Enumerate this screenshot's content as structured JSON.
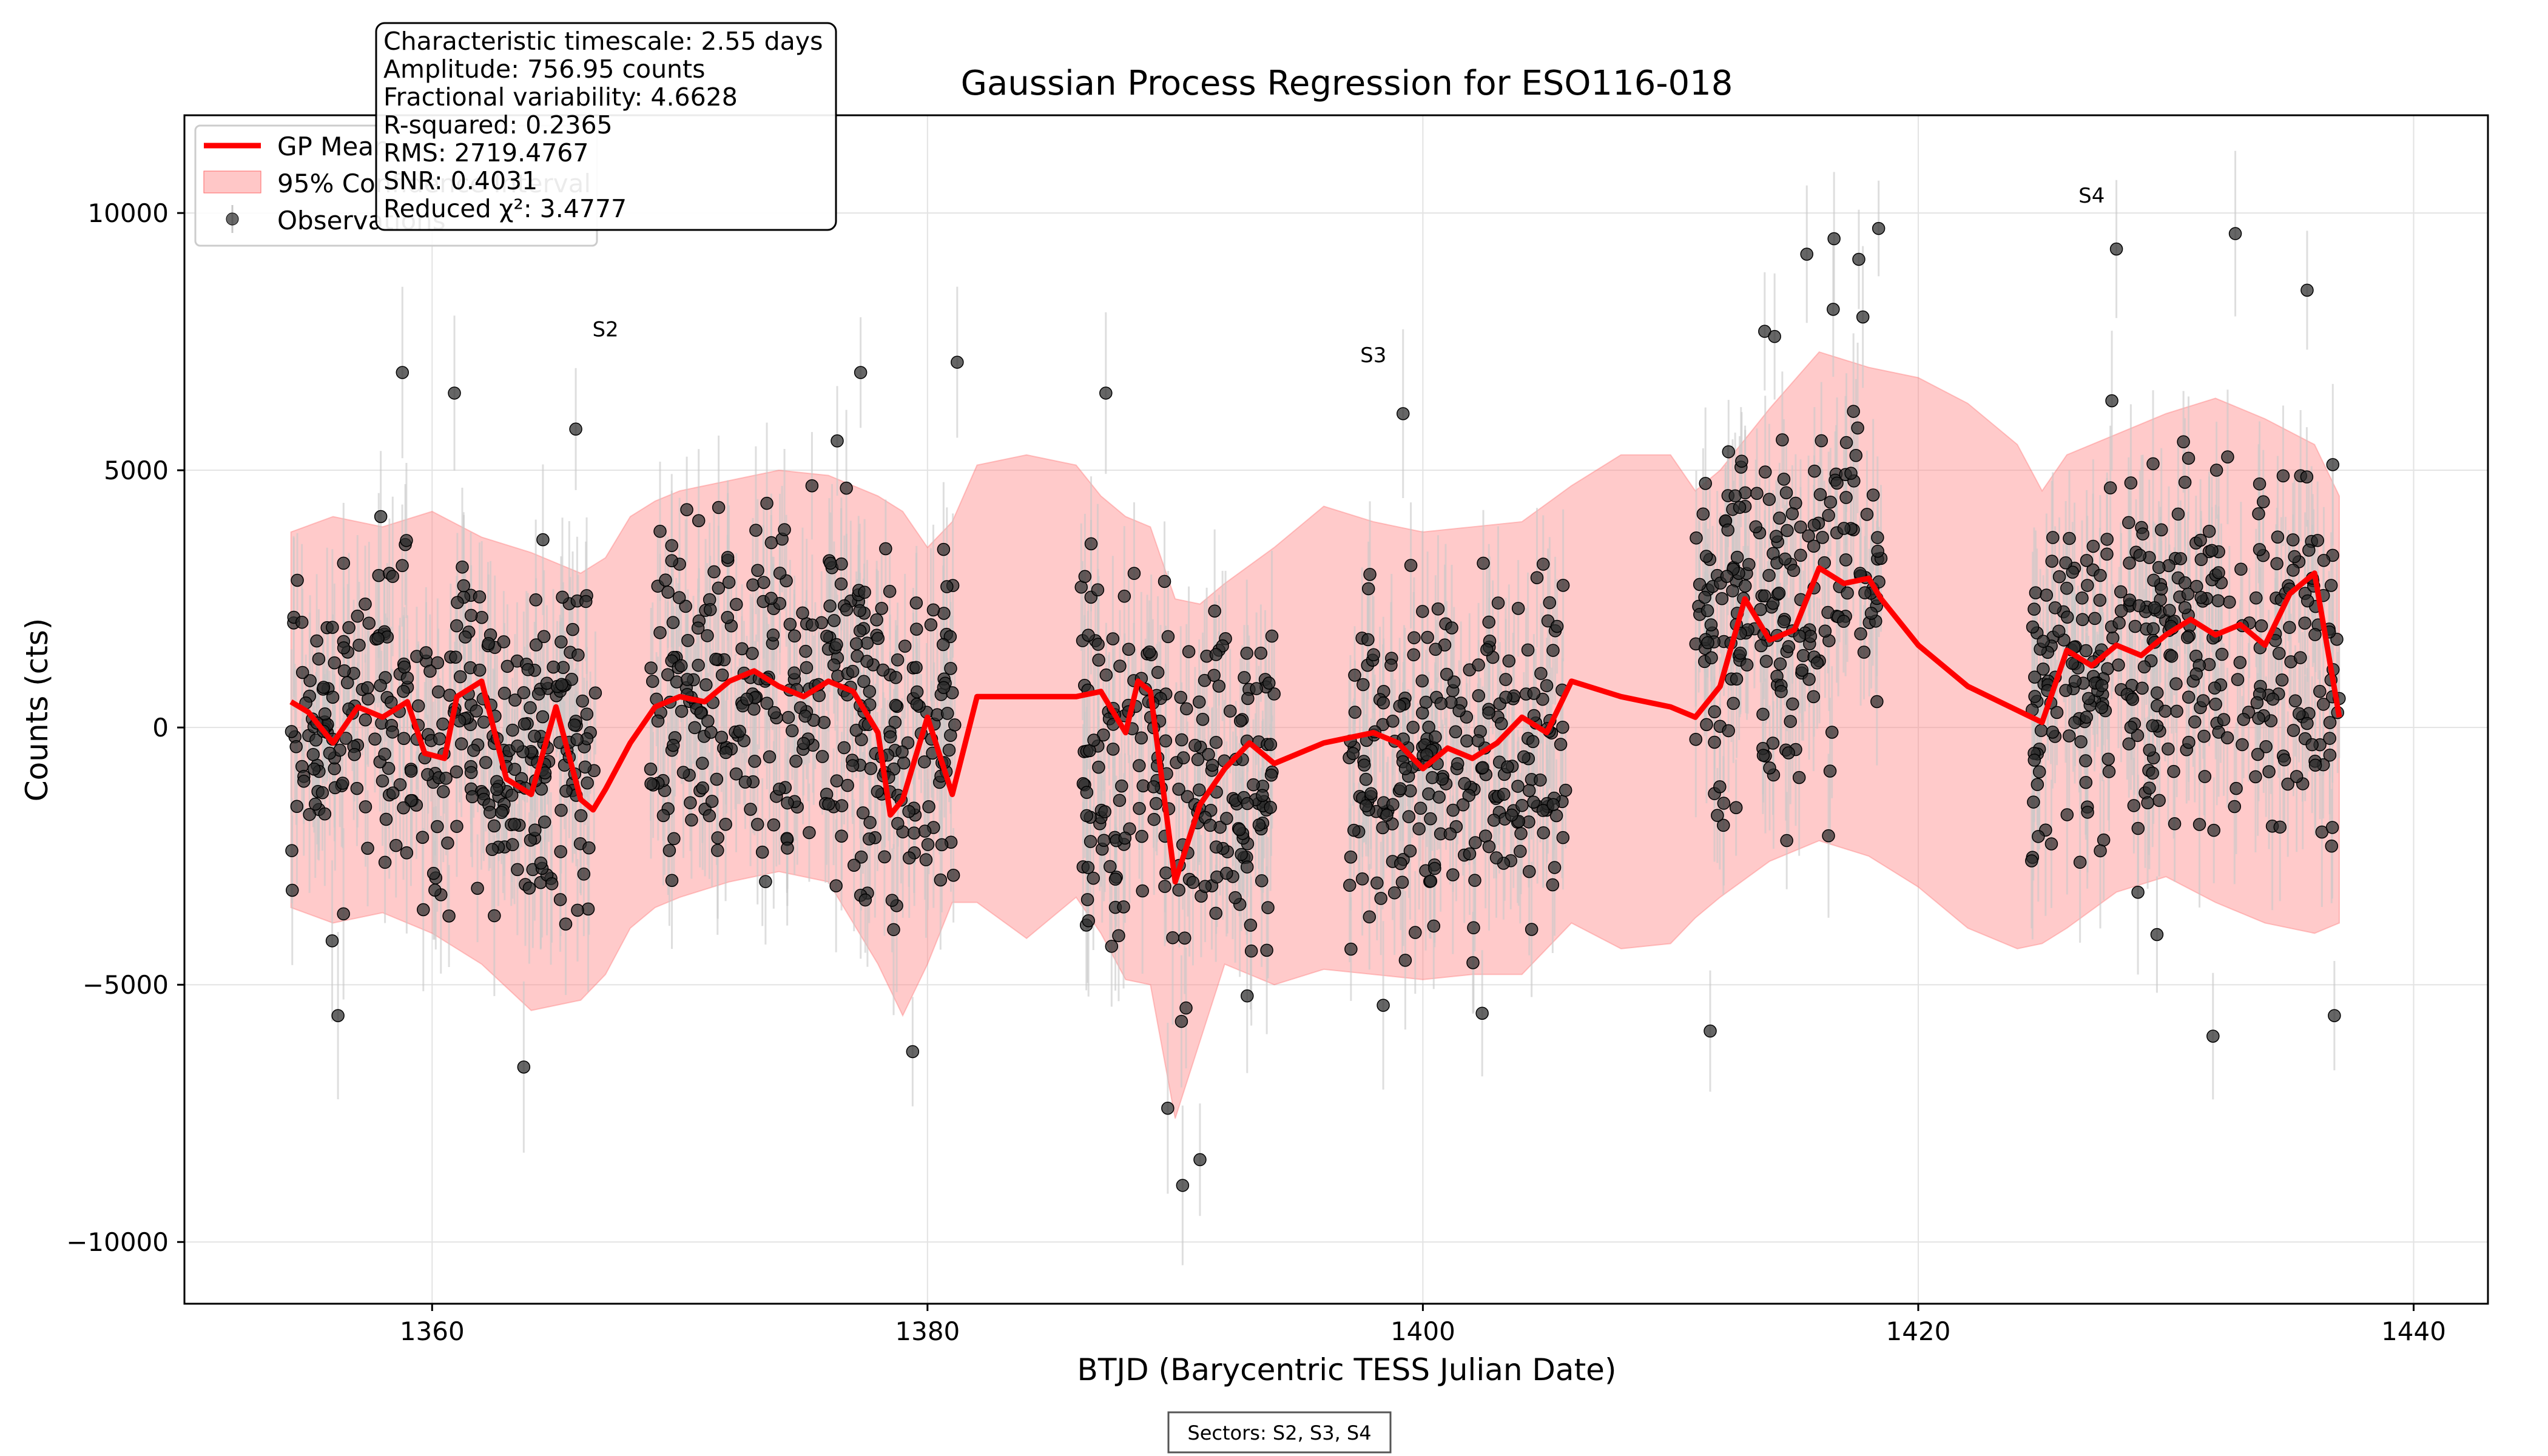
{
  "chart_data": {
    "type": "scatter",
    "title": "Gaussian Process Regression for ESO116-018",
    "xlabel": "BTJD (Barycentric TESS Julian Date)",
    "ylabel": "Counts (cts)",
    "xlim": [
      1350,
      1443
    ],
    "ylim": [
      -11200,
      11900
    ],
    "x_ticks": [
      1360,
      1380,
      1400,
      1420,
      1440
    ],
    "y_ticks": [
      -10000,
      -5000,
      0,
      5000,
      10000
    ],
    "x_tick_labels": [
      "1360",
      "1380",
      "1400",
      "1420",
      "1440"
    ],
    "y_tick_labels": [
      "−10000",
      "−5000",
      "0",
      "5000",
      "10000"
    ],
    "grid": true,
    "legend_position": "top-left",
    "legend": [
      {
        "label": "GP Mean",
        "kind": "line",
        "color": "#ff0000"
      },
      {
        "label": "95% Confidence Interval",
        "kind": "band",
        "color": "#ff9999"
      },
      {
        "label": "Observations",
        "kind": "marker",
        "color": "#333333"
      }
    ],
    "stats_box": [
      "Characteristic timescale: 2.55 days",
      "Amplitude: 756.95 counts",
      "Fractional variability: 4.6628",
      "R-squared: 0.2365",
      "RMS: 2719.4767",
      "SNR: 0.4031",
      "Reduced χ²: 3.4777"
    ],
    "sector_labels": [
      {
        "label": "S2",
        "x": 1367,
        "y": 7600
      },
      {
        "label": "S3",
        "x": 1398,
        "y": 7100
      },
      {
        "label": "S4",
        "x": 1427,
        "y": 10200
      }
    ],
    "footer_note": "Sectors: S2, S3, S4",
    "colors": {
      "gp_mean": "#ff0000",
      "ci_band": "#ff8080",
      "points": "#2b2b2b",
      "errorbars": "#c8c8c8"
    },
    "series": [
      {
        "name": "GP Mean",
        "x": [
          1354.3,
          1355,
          1356,
          1357,
          1358,
          1359,
          1359.7,
          1360.5,
          1361,
          1362,
          1363,
          1364,
          1365,
          1366,
          1366.5,
          1367,
          1368,
          1369,
          1370,
          1371,
          1372,
          1373,
          1374,
          1375,
          1376,
          1377,
          1378,
          1378.5,
          1379,
          1380,
          1381,
          1382,
          1384,
          1386,
          1387,
          1388,
          1388.5,
          1389,
          1390,
          1391,
          1392,
          1393,
          1394,
          1396,
          1398,
          1399,
          1400,
          1401,
          1402,
          1403,
          1404,
          1405,
          1406,
          1408,
          1410,
          1411,
          1412,
          1413,
          1414,
          1415,
          1416,
          1417,
          1418,
          1418.5,
          1420,
          1422,
          1425,
          1426,
          1427,
          1428,
          1429,
          1430,
          1431,
          1432,
          1433,
          1434,
          1435,
          1436,
          1437
        ],
        "y": [
          500,
          300,
          -300,
          400,
          200,
          500,
          -500,
          -600,
          600,
          900,
          -1000,
          -1300,
          400,
          -1400,
          -1600,
          -1200,
          -300,
          400,
          600,
          500,
          900,
          1100,
          800,
          600,
          900,
          700,
          -100,
          -1700,
          -1400,
          200,
          -1300,
          600,
          600,
          600,
          700,
          -100,
          900,
          700,
          -3000,
          -1500,
          -800,
          -300,
          -700,
          -300,
          -100,
          -300,
          -800,
          -400,
          -600,
          -300,
          200,
          -100,
          900,
          600,
          400,
          200,
          800,
          2500,
          1700,
          1900,
          3100,
          2800,
          2900,
          2500,
          1600,
          800,
          100,
          1500,
          1200,
          1600,
          1400,
          1800,
          2100,
          1800,
          2000,
          1600,
          2600,
          3000,
          200
        ]
      },
      {
        "name": "95% Confidence Interval",
        "x": [
          1354.3,
          1356,
          1358,
          1360,
          1362,
          1364,
          1366,
          1367,
          1368,
          1369,
          1370,
          1372,
          1374,
          1376,
          1378,
          1379,
          1380,
          1381,
          1382,
          1384,
          1386,
          1387,
          1388,
          1389,
          1390,
          1391,
          1392,
          1394,
          1396,
          1398,
          1400,
          1402,
          1404,
          1406,
          1408,
          1410,
          1411,
          1412,
          1414,
          1416,
          1418,
          1420,
          1422,
          1424,
          1425,
          1426,
          1428,
          1430,
          1432,
          1434,
          1436,
          1437
        ],
        "upper": [
          3800,
          4100,
          3900,
          4200,
          3700,
          3400,
          3000,
          3300,
          4100,
          4400,
          4600,
          4800,
          5000,
          4900,
          4500,
          4200,
          3500,
          4000,
          5100,
          5300,
          5100,
          4500,
          4100,
          3900,
          2500,
          2400,
          2800,
          3500,
          4300,
          4000,
          3800,
          3900,
          4000,
          4700,
          5300,
          5300,
          4600,
          5000,
          6200,
          7300,
          7000,
          6800,
          6300,
          5500,
          4600,
          5300,
          5700,
          6100,
          6400,
          6000,
          5500,
          4500
        ],
        "lower": [
          -3500,
          -3800,
          -3600,
          -4000,
          -4600,
          -5500,
          -5300,
          -4800,
          -3900,
          -3500,
          -3300,
          -3000,
          -2800,
          -3000,
          -4600,
          -5600,
          -4600,
          -3400,
          -3400,
          -4100,
          -3300,
          -4000,
          -4900,
          -5000,
          -7600,
          -6100,
          -4600,
          -5000,
          -4700,
          -4800,
          -4900,
          -4800,
          -4800,
          -3800,
          -4300,
          -4200,
          -3700,
          -3300,
          -2600,
          -2200,
          -2500,
          -3100,
          -3900,
          -4300,
          -4200,
          -3900,
          -3200,
          -2900,
          -3400,
          -3800,
          -4000,
          -3800
        ]
      },
      {
        "name": "Observations",
        "segments": [
          {
            "sector": "S2",
            "x_start": 1354.3,
            "x_end": 1366.6,
            "center": 0,
            "spread": 2300
          },
          {
            "sector": "S2",
            "x_start": 1368.8,
            "x_end": 1381.2,
            "center": 500,
            "spread": 2400
          },
          {
            "sector": "S3",
            "x_start": 1386.2,
            "x_end": 1394.0,
            "center": -1200,
            "spread": 2600
          },
          {
            "sector": "S3",
            "x_start": 1397.0,
            "x_end": 1405.8,
            "center": -500,
            "spread": 2400
          },
          {
            "sector": "S4",
            "x_start": 1411.0,
            "x_end": 1418.5,
            "center": 2300,
            "spread": 2600
          },
          {
            "sector": "S4",
            "x_start": 1424.5,
            "x_end": 1437.0,
            "center": 1300,
            "spread": 2500
          }
        ],
        "typical_error": 1300,
        "notable_points": [
          {
            "x": 1358.8,
            "y": 6900
          },
          {
            "x": 1360.9,
            "y": 6500
          },
          {
            "x": 1365.8,
            "y": 5800
          },
          {
            "x": 1377.3,
            "y": 6900
          },
          {
            "x": 1381.2,
            "y": 7100
          },
          {
            "x": 1387.2,
            "y": 6500
          },
          {
            "x": 1390.3,
            "y": -8900
          },
          {
            "x": 1391.0,
            "y": -8400
          },
          {
            "x": 1389.7,
            "y": -7400
          },
          {
            "x": 1399.2,
            "y": 6100
          },
          {
            "x": 1413.8,
            "y": 7700
          },
          {
            "x": 1414.2,
            "y": 7600
          },
          {
            "x": 1415.5,
            "y": 9200
          },
          {
            "x": 1416.6,
            "y": 9500
          },
          {
            "x": 1418.4,
            "y": 9700
          },
          {
            "x": 1417.6,
            "y": 9100
          },
          {
            "x": 1428.0,
            "y": 9300
          },
          {
            "x": 1432.8,
            "y": 9600
          },
          {
            "x": 1435.7,
            "y": 8500
          },
          {
            "x": 1356.2,
            "y": -5600
          },
          {
            "x": 1363.7,
            "y": -6600
          },
          {
            "x": 1379.4,
            "y": -6300
          },
          {
            "x": 1411.6,
            "y": -5900
          },
          {
            "x": 1436.8,
            "y": -5600
          },
          {
            "x": 1431.9,
            "y": -6000
          },
          {
            "x": 1398.4,
            "y": -5400
          }
        ]
      }
    ]
  }
}
